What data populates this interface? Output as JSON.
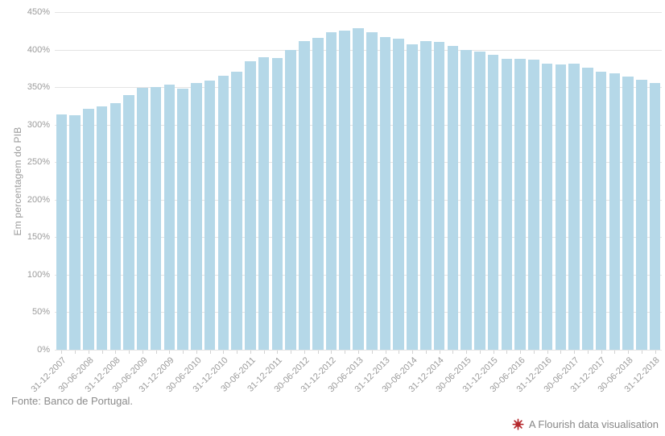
{
  "page": {
    "background": "#ffffff"
  },
  "y_axis": {
    "title": "Em percentagem do PIB",
    "tick_labels": [
      "0%",
      "50%",
      "100%",
      "150%",
      "200%",
      "250%",
      "300%",
      "350%",
      "400%",
      "450%"
    ],
    "label_color": "#9b9b9b"
  },
  "footer": {
    "source": "Fonte: Banco de Portugal."
  },
  "attribution": {
    "label": "A Flourish data visualisation",
    "icon": "flourish-starburst-icon",
    "icon_color": "#b5282c",
    "text_color": "#878787"
  },
  "chart_data": {
    "type": "bar",
    "title": "",
    "xlabel": "",
    "ylabel": "Em percentagem do PIB",
    "ylim": [
      0,
      450
    ],
    "ytick_step": 50,
    "grid": true,
    "legend": "none",
    "bar_color": "#b5d8e8",
    "grid_color": "#e4e4e4",
    "x": [
      "31-12-2007",
      "31-03-2008",
      "30-06-2008",
      "30-09-2008",
      "31-12-2008",
      "31-03-2009",
      "30-06-2009",
      "30-09-2009",
      "31-12-2009",
      "31-03-2010",
      "30-06-2010",
      "30-09-2010",
      "31-12-2010",
      "31-03-2011",
      "30-06-2011",
      "30-09-2011",
      "31-12-2011",
      "31-03-2012",
      "30-06-2012",
      "30-09-2012",
      "31-12-2012",
      "31-03-2013",
      "30-06-2013",
      "30-09-2013",
      "31-12-2013",
      "31-03-2014",
      "30-06-2014",
      "30-09-2014",
      "31-12-2014",
      "31-03-2015",
      "30-06-2015",
      "30-09-2015",
      "31-12-2015",
      "31-03-2016",
      "30-06-2016",
      "30-09-2016",
      "31-12-2016",
      "31-03-2017",
      "30-06-2017",
      "30-09-2017",
      "31-12-2017",
      "31-03-2018",
      "30-06-2018",
      "30-09-2018",
      "31-12-2018"
    ],
    "values": [
      314,
      313,
      321,
      324,
      329,
      339,
      349,
      350,
      353,
      348,
      356,
      359,
      365,
      370,
      384,
      390,
      389,
      400,
      411,
      416,
      423,
      425,
      429,
      423,
      417,
      415,
      407,
      411,
      410,
      405,
      400,
      397,
      393,
      388,
      388,
      387,
      381,
      380,
      381,
      376,
      370,
      368,
      364,
      360,
      356
    ],
    "xtick_labels_shown": [
      "31-12-2007",
      "30-06-2008",
      "31-12-2008",
      "30-06-2009",
      "31-12-2009",
      "30-06-2010",
      "31-12-2010",
      "30-06-2011",
      "31-12-2011",
      "30-06-2012",
      "31-12-2012",
      "30-06-2013",
      "31-12-2013",
      "30-06-2014",
      "31-12-2014",
      "30-06-2015",
      "31-12-2015",
      "30-06-2016",
      "31-12-2016",
      "30-06-2017",
      "31-12-2017",
      "30-06-2018",
      "31-12-2018"
    ],
    "xtick_every": 2
  }
}
